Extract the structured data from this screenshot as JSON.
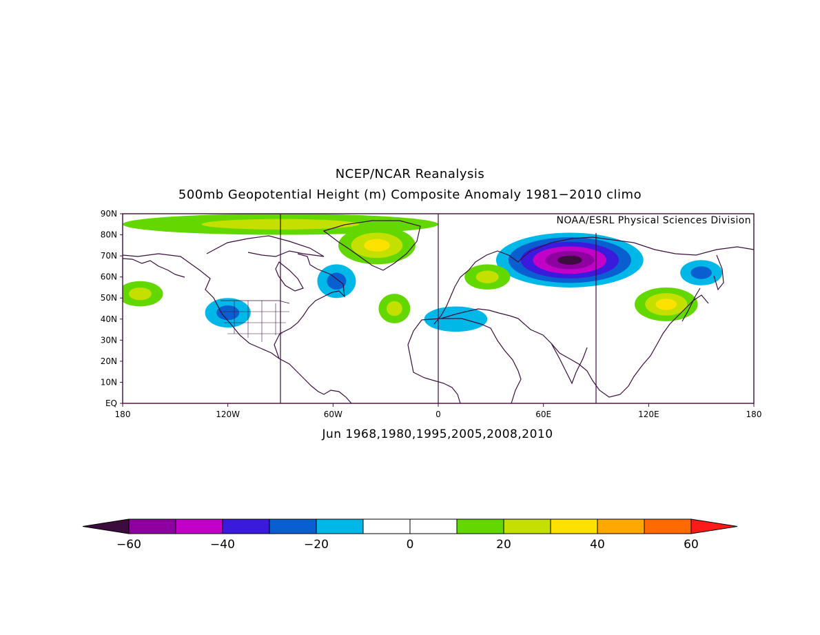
{
  "header": {
    "title": "NCEP/NCAR Reanalysis",
    "subtitle": "500mb Geopotential Height (m) Composite Anomaly 1981−2010 climo",
    "credit": "NOAA/ESRL Physical Sciences Division"
  },
  "map": {
    "lat_labels": [
      "90N",
      "80N",
      "70N",
      "60N",
      "50N",
      "40N",
      "30N",
      "20N",
      "10N",
      "EQ"
    ],
    "lon_labels": [
      "180",
      "120W",
      "60W",
      "0",
      "60E",
      "120E",
      "180"
    ],
    "lon_range": [
      -180,
      180
    ],
    "lat_range": [
      0,
      90
    ],
    "period_label": "Jun 1968,1980,1995,2005,2008,2010",
    "anomaly_centers": [
      {
        "name": "siberia-low",
        "lon": 75,
        "lat": 68,
        "value": -60,
        "rx": 42,
        "ry": 13
      },
      {
        "name": "nw-america-low",
        "lon": -120,
        "lat": 43,
        "value": -25,
        "rx": 13,
        "ry": 7
      },
      {
        "name": "labrador-low",
        "lon": -58,
        "lat": 58,
        "value": -22,
        "rx": 11,
        "ry": 8
      },
      {
        "name": "mediterranean-low",
        "lon": 10,
        "lat": 40,
        "value": -15,
        "rx": 18,
        "ry": 6
      },
      {
        "name": "okhotsk-low",
        "lon": 150,
        "lat": 62,
        "value": -20,
        "rx": 12,
        "ry": 6
      },
      {
        "name": "greenland-high",
        "lon": -35,
        "lat": 75,
        "value": 35,
        "rx": 22,
        "ry": 9
      },
      {
        "name": "arctic-high",
        "lon": -90,
        "lat": 85,
        "value": 25,
        "rx": 90,
        "ry": 5
      },
      {
        "name": "east-asia-high",
        "lon": 130,
        "lat": 47,
        "value": 35,
        "rx": 18,
        "ry": 8
      },
      {
        "name": "atlantic-high",
        "lon": -25,
        "lat": 45,
        "value": 25,
        "rx": 9,
        "ry": 7
      },
      {
        "name": "scandinavia-high",
        "lon": 28,
        "lat": 60,
        "value": 25,
        "rx": 13,
        "ry": 6
      },
      {
        "name": "pacific-high",
        "lon": -170,
        "lat": 52,
        "value": 25,
        "rx": 13,
        "ry": 6
      }
    ]
  },
  "colorbar": {
    "levels": [
      "-60",
      "-40",
      "-20",
      "0",
      "20",
      "40",
      "60"
    ],
    "colors": [
      "#3b0c3d",
      "#8e00a0",
      "#c200c8",
      "#3a1adc",
      "#0a5fd0",
      "#00b8e8",
      "#ffffff",
      "#ffffff",
      "#62d800",
      "#c4e000",
      "#fde200",
      "#ffa800",
      "#ff6a00",
      "#ff1a1a"
    ],
    "contour_interval": 10
  }
}
